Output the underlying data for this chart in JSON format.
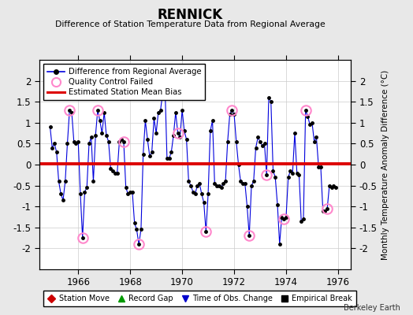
{
  "title": "RENNICK",
  "subtitle": "Difference of Station Temperature Data from Regional Average",
  "ylabel_right": "Monthly Temperature Anomaly Difference (°C)",
  "xlim": [
    1964.5,
    1976.5
  ],
  "ylim": [
    -2.5,
    2.5
  ],
  "xticks": [
    1966,
    1968,
    1970,
    1972,
    1974,
    1976
  ],
  "yticks": [
    -2.0,
    -1.5,
    -1.0,
    -0.5,
    0.0,
    0.5,
    1.0,
    1.5,
    2.0
  ],
  "ytick_labels": [
    "-2",
    "-1.5",
    "-1",
    "-0.5",
    "0",
    "0.5",
    "1",
    "1.5",
    "2"
  ],
  "bias_line_y": 0.02,
  "background_color": "#e8e8e8",
  "plot_bg_color": "#ffffff",
  "line_color": "#0000dd",
  "bias_color": "#dd0000",
  "qc_marker_color": "#ff88cc",
  "dot_color": "#000000",
  "berkeley_earth_text": "Berkeley Earth",
  "time_series": [
    [
      1964.917,
      0.9
    ],
    [
      1965.0,
      0.4
    ],
    [
      1965.083,
      0.5
    ],
    [
      1965.167,
      0.3
    ],
    [
      1965.25,
      -0.4
    ],
    [
      1965.333,
      -0.7
    ],
    [
      1965.417,
      -0.85
    ],
    [
      1965.5,
      -0.4
    ],
    [
      1965.583,
      0.5
    ],
    [
      1965.667,
      1.3
    ],
    [
      1965.75,
      1.25
    ],
    [
      1965.833,
      0.55
    ],
    [
      1965.917,
      0.5
    ],
    [
      1966.0,
      0.55
    ],
    [
      1966.083,
      -0.7
    ],
    [
      1966.167,
      -1.75
    ],
    [
      1966.25,
      -0.65
    ],
    [
      1966.333,
      -0.55
    ],
    [
      1966.417,
      0.5
    ],
    [
      1966.5,
      0.65
    ],
    [
      1966.583,
      -0.4
    ],
    [
      1966.667,
      0.7
    ],
    [
      1966.75,
      1.3
    ],
    [
      1966.833,
      1.05
    ],
    [
      1966.917,
      0.75
    ],
    [
      1967.0,
      1.25
    ],
    [
      1967.083,
      0.7
    ],
    [
      1967.167,
      0.55
    ],
    [
      1967.25,
      -0.1
    ],
    [
      1967.333,
      -0.15
    ],
    [
      1967.417,
      -0.2
    ],
    [
      1967.5,
      -0.2
    ],
    [
      1967.583,
      0.55
    ],
    [
      1967.667,
      0.6
    ],
    [
      1967.75,
      0.55
    ],
    [
      1967.833,
      -0.55
    ],
    [
      1967.917,
      -0.7
    ],
    [
      1968.0,
      -0.65
    ],
    [
      1968.083,
      -0.65
    ],
    [
      1968.167,
      -1.4
    ],
    [
      1968.25,
      -1.55
    ],
    [
      1968.333,
      -1.9
    ],
    [
      1968.417,
      -1.55
    ],
    [
      1968.5,
      0.25
    ],
    [
      1968.583,
      1.05
    ],
    [
      1968.667,
      0.6
    ],
    [
      1968.75,
      0.2
    ],
    [
      1968.833,
      0.3
    ],
    [
      1968.917,
      1.1
    ],
    [
      1969.0,
      0.75
    ],
    [
      1969.083,
      1.25
    ],
    [
      1969.167,
      1.3
    ],
    [
      1969.25,
      1.7
    ],
    [
      1969.333,
      2.0
    ],
    [
      1969.417,
      0.15
    ],
    [
      1969.5,
      0.15
    ],
    [
      1969.583,
      0.3
    ],
    [
      1969.667,
      0.7
    ],
    [
      1969.75,
      1.25
    ],
    [
      1969.833,
      0.75
    ],
    [
      1969.917,
      0.65
    ],
    [
      1970.0,
      1.3
    ],
    [
      1970.083,
      0.8
    ],
    [
      1970.167,
      0.6
    ],
    [
      1970.25,
      -0.4
    ],
    [
      1970.333,
      -0.5
    ],
    [
      1970.417,
      -0.65
    ],
    [
      1970.5,
      -0.7
    ],
    [
      1970.583,
      -0.5
    ],
    [
      1970.667,
      -0.45
    ],
    [
      1970.75,
      -0.7
    ],
    [
      1970.833,
      -0.9
    ],
    [
      1970.917,
      -1.6
    ],
    [
      1971.0,
      -0.7
    ],
    [
      1971.083,
      0.8
    ],
    [
      1971.167,
      1.05
    ],
    [
      1971.25,
      -0.45
    ],
    [
      1971.333,
      -0.5
    ],
    [
      1971.417,
      -0.5
    ],
    [
      1971.5,
      -0.55
    ],
    [
      1971.583,
      -0.45
    ],
    [
      1971.667,
      -0.4
    ],
    [
      1971.75,
      0.55
    ],
    [
      1971.833,
      1.2
    ],
    [
      1971.917,
      1.3
    ],
    [
      1972.0,
      1.2
    ],
    [
      1972.083,
      0.55
    ],
    [
      1972.167,
      -0.0
    ],
    [
      1972.25,
      -0.4
    ],
    [
      1972.333,
      -0.45
    ],
    [
      1972.417,
      -0.45
    ],
    [
      1972.5,
      -1.0
    ],
    [
      1972.583,
      -1.7
    ],
    [
      1972.667,
      -0.5
    ],
    [
      1972.75,
      -0.4
    ],
    [
      1972.833,
      0.4
    ],
    [
      1972.917,
      0.65
    ],
    [
      1973.0,
      0.55
    ],
    [
      1973.083,
      0.45
    ],
    [
      1973.167,
      0.5
    ],
    [
      1973.25,
      -0.25
    ],
    [
      1973.333,
      1.6
    ],
    [
      1973.417,
      1.5
    ],
    [
      1973.5,
      -0.15
    ],
    [
      1973.583,
      -0.3
    ],
    [
      1973.667,
      -0.95
    ],
    [
      1973.75,
      -1.9
    ],
    [
      1973.833,
      -1.25
    ],
    [
      1973.917,
      -1.3
    ],
    [
      1974.0,
      -1.25
    ],
    [
      1974.083,
      -0.3
    ],
    [
      1974.167,
      -0.15
    ],
    [
      1974.25,
      -0.2
    ],
    [
      1974.333,
      0.75
    ],
    [
      1974.417,
      -0.2
    ],
    [
      1974.5,
      -0.25
    ],
    [
      1974.583,
      -1.35
    ],
    [
      1974.667,
      -1.3
    ],
    [
      1974.75,
      1.3
    ],
    [
      1974.833,
      1.15
    ],
    [
      1974.917,
      0.95
    ],
    [
      1975.0,
      1.0
    ],
    [
      1975.083,
      0.55
    ],
    [
      1975.167,
      0.65
    ],
    [
      1975.25,
      -0.05
    ],
    [
      1975.333,
      -0.05
    ],
    [
      1975.417,
      -1.1
    ],
    [
      1975.5,
      -1.1
    ],
    [
      1975.583,
      -1.05
    ],
    [
      1975.667,
      -0.5
    ],
    [
      1975.75,
      -0.55
    ],
    [
      1975.833,
      -0.5
    ],
    [
      1975.917,
      -0.55
    ]
  ],
  "qc_failed_indices": [
    9,
    15,
    22,
    34,
    41,
    53,
    59,
    72,
    84,
    92,
    100,
    108,
    118,
    128
  ],
  "legend2_items": [
    {
      "label": "Station Move",
      "color": "#cc0000",
      "marker": "D"
    },
    {
      "label": "Record Gap",
      "color": "#009900",
      "marker": "^"
    },
    {
      "label": "Time of Obs. Change",
      "color": "#0000cc",
      "marker": "v"
    },
    {
      "label": "Empirical Break",
      "color": "#000000",
      "marker": "s"
    }
  ]
}
